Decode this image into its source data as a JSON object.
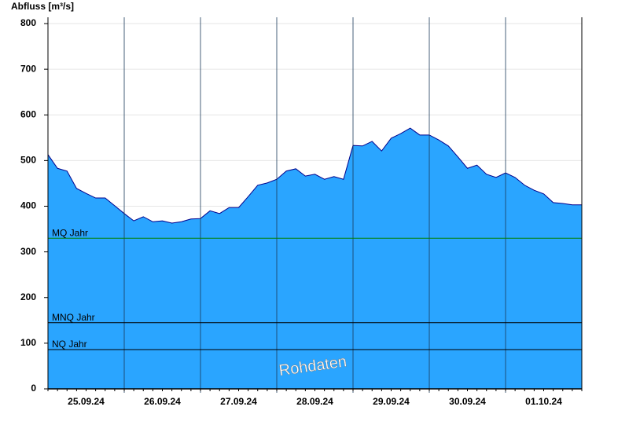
{
  "chart_data": {
    "type": "area",
    "y_axis_title": "Abfluss [m³/s]",
    "x": [
      null,
      null,
      null,
      null,
      "25.09.24",
      null,
      null,
      null,
      null,
      null,
      null,
      null,
      "26.09.24",
      null,
      null,
      null,
      null,
      null,
      null,
      null,
      "27.09.24",
      null,
      null,
      null,
      null,
      null,
      null,
      null,
      "28.09.24",
      null,
      null,
      null,
      null,
      null,
      null,
      null,
      "29.09.24",
      null,
      null,
      null,
      null,
      null,
      null,
      null,
      "30.09.24",
      null,
      null,
      null,
      null,
      null,
      null,
      null,
      "01.10.24",
      null,
      null,
      null,
      null
    ],
    "series": [
      {
        "color": "#2aa5ff",
        "line_color": "#00008b",
        "values": [
          513,
          483,
          477,
          439,
          428,
          418,
          418,
          401,
          384,
          368,
          377,
          366,
          368,
          363,
          366,
          372,
          373,
          390,
          384,
          397,
          397,
          421,
          446,
          451,
          459,
          477,
          482,
          466,
          470,
          459,
          465,
          459,
          533,
          532,
          542,
          521,
          549,
          559,
          571,
          556,
          556,
          545,
          532,
          508,
          483,
          490,
          470,
          463,
          473,
          463,
          446,
          435,
          427,
          408,
          406,
          403,
          403
        ]
      }
    ],
    "reference_lines": [
      {
        "label": "MQ Jahr",
        "value": 330,
        "color": "#008000"
      },
      {
        "label": "MNQ Jahr",
        "value": 145,
        "color": "#000000"
      },
      {
        "label": "NQ Jahr",
        "value": 86,
        "color": "#000000"
      }
    ],
    "ylim": [
      0,
      800
    ],
    "yticks": [
      0,
      100,
      200,
      300,
      400,
      500,
      600,
      700,
      800
    ],
    "grid": true,
    "watermark": "Rohdaten"
  }
}
